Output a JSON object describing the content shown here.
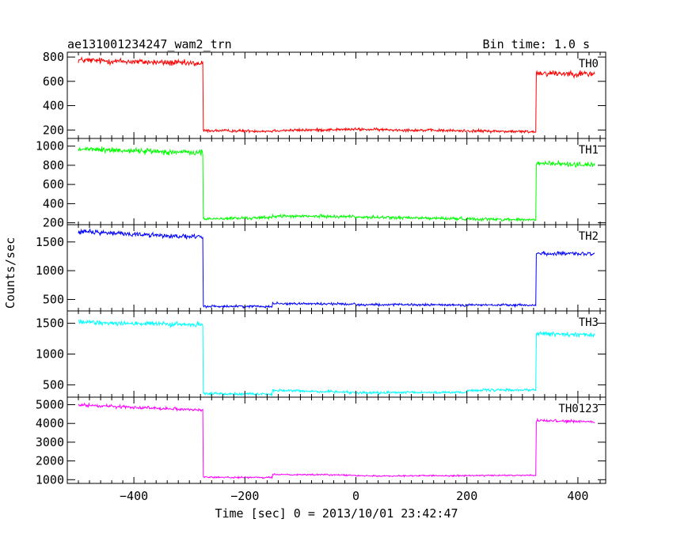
{
  "header": {
    "left_title": "ae131001234247_wam2_trn",
    "right_title": "Bin time: 1.0 s"
  },
  "chart_data": {
    "type": "line",
    "xlabel": "Time [sec] 0 = 2013/10/01 23:42:47",
    "ylabel": "Counts/sec",
    "xlim": [
      -520,
      450
    ],
    "x_ticks": [
      -400,
      -200,
      0,
      200,
      400
    ],
    "x_tick_labels": [
      "−400",
      "−200",
      "0",
      "200",
      "400"
    ],
    "grid": false,
    "panels": [
      {
        "name": "TH0",
        "color": "#ff0000",
        "ylim": [
          130,
          840
        ],
        "y_ticks": [
          200,
          400,
          600,
          800
        ],
        "x_start": -500,
        "x_end": 430,
        "segments": [
          {
            "x0": -500,
            "x1": -275,
            "y0": 775,
            "y1": 745,
            "noise": 22
          },
          {
            "x0": -275,
            "x1": -150,
            "y0": 195,
            "y1": 190,
            "noise": 10
          },
          {
            "x0": -150,
            "x1": 0,
            "y0": 195,
            "y1": 205,
            "noise": 10
          },
          {
            "x0": 0,
            "x1": 325,
            "y0": 205,
            "y1": 185,
            "noise": 10
          },
          {
            "x0": 325,
            "x1": 430,
            "y0": 670,
            "y1": 660,
            "noise": 22
          }
        ]
      },
      {
        "name": "TH1",
        "color": "#00ff00",
        "ylim": [
          180,
          1080
        ],
        "y_ticks": [
          200,
          400,
          600,
          800,
          1000
        ],
        "x_start": -500,
        "x_end": 430,
        "segments": [
          {
            "x0": -500,
            "x1": -275,
            "y0": 970,
            "y1": 930,
            "noise": 25
          },
          {
            "x0": -275,
            "x1": -150,
            "y0": 240,
            "y1": 255,
            "noise": 14
          },
          {
            "x0": -150,
            "x1": 0,
            "y0": 270,
            "y1": 265,
            "noise": 14
          },
          {
            "x0": 0,
            "x1": 325,
            "y0": 260,
            "y1": 230,
            "noise": 14
          },
          {
            "x0": 325,
            "x1": 430,
            "y0": 820,
            "y1": 805,
            "noise": 22
          }
        ]
      },
      {
        "name": "TH2",
        "color": "#0000ff",
        "ylim": [
          300,
          1800
        ],
        "y_ticks": [
          500,
          1000,
          1500
        ],
        "x_start": -500,
        "x_end": 430,
        "segments": [
          {
            "x0": -500,
            "x1": -275,
            "y0": 1680,
            "y1": 1580,
            "noise": 35
          },
          {
            "x0": -275,
            "x1": -150,
            "y0": 380,
            "y1": 380,
            "noise": 18
          },
          {
            "x0": -150,
            "x1": 0,
            "y0": 430,
            "y1": 420,
            "noise": 18
          },
          {
            "x0": 0,
            "x1": 325,
            "y0": 410,
            "y1": 400,
            "noise": 18
          },
          {
            "x0": 325,
            "x1": 430,
            "y0": 1300,
            "y1": 1290,
            "noise": 30
          }
        ]
      },
      {
        "name": "TH3",
        "color": "#00ffff",
        "ylim": [
          300,
          1700
        ],
        "y_ticks": [
          500,
          1000,
          1500
        ],
        "x_start": -500,
        "x_end": 430,
        "segments": [
          {
            "x0": -500,
            "x1": -275,
            "y0": 1520,
            "y1": 1470,
            "noise": 35
          },
          {
            "x0": -275,
            "x1": -150,
            "y0": 360,
            "y1": 350,
            "noise": 18
          },
          {
            "x0": -150,
            "x1": 0,
            "y0": 410,
            "y1": 380,
            "noise": 18
          },
          {
            "x0": 0,
            "x1": 200,
            "y0": 370,
            "y1": 380,
            "noise": 18
          },
          {
            "x0": 200,
            "x1": 325,
            "y0": 410,
            "y1": 420,
            "noise": 18
          },
          {
            "x0": 325,
            "x1": 430,
            "y0": 1330,
            "y1": 1310,
            "noise": 30
          }
        ]
      },
      {
        "name": "TH0123",
        "color": "#ff00ff",
        "ylim": [
          800,
          5400
        ],
        "y_ticks": [
          1000,
          2000,
          3000,
          4000,
          5000
        ],
        "x_start": -500,
        "x_end": 430,
        "segments": [
          {
            "x0": -500,
            "x1": -275,
            "y0": 4980,
            "y1": 4720,
            "noise": 70
          },
          {
            "x0": -275,
            "x1": -150,
            "y0": 1130,
            "y1": 1110,
            "noise": 35
          },
          {
            "x0": -150,
            "x1": 0,
            "y0": 1280,
            "y1": 1250,
            "noise": 35
          },
          {
            "x0": 0,
            "x1": 325,
            "y0": 1200,
            "y1": 1230,
            "noise": 35
          },
          {
            "x0": 325,
            "x1": 430,
            "y0": 4150,
            "y1": 4080,
            "noise": 60
          }
        ]
      }
    ]
  }
}
